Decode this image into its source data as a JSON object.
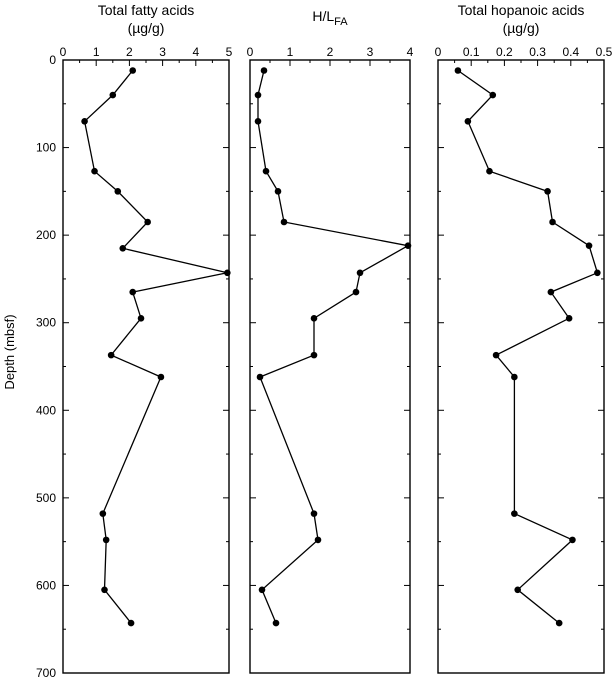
{
  "chart_data": [
    {
      "type": "line",
      "title_line1": "Total fatty acids",
      "title_line2": "(µg/g)",
      "xlim": [
        0,
        5
      ],
      "xticks": [
        "0",
        "1",
        "2",
        "3",
        "4",
        "5"
      ],
      "ylim": [
        0,
        700
      ],
      "x": [
        2.1,
        1.5,
        0.65,
        0.95,
        1.65,
        2.55,
        1.8,
        4.95,
        2.1,
        2.35,
        1.45,
        2.95,
        1.2,
        1.3,
        1.25,
        2.05
      ],
      "y": [
        12,
        40,
        70,
        127,
        150,
        185,
        215,
        243,
        265,
        295,
        337,
        362,
        518,
        548,
        605,
        643
      ]
    },
    {
      "type": "line",
      "title_main": "H/L",
      "title_sub": "FA",
      "xlim": [
        0,
        4
      ],
      "xticks": [
        "0",
        "1",
        "2",
        "3",
        "4"
      ],
      "ylim": [
        0,
        700
      ],
      "x": [
        0.35,
        0.2,
        0.2,
        0.4,
        0.7,
        0.85,
        3.95,
        2.75,
        2.65,
        1.6,
        1.6,
        0.25,
        1.6,
        1.7,
        0.3,
        0.65
      ],
      "y": [
        12,
        40,
        70,
        127,
        150,
        185,
        212,
        243,
        265,
        295,
        337,
        362,
        518,
        548,
        605,
        643
      ]
    },
    {
      "type": "line",
      "title_line1": "Total hopanoic acids",
      "title_line2": "(µg/g)",
      "xlim": [
        0,
        0.5
      ],
      "xticks": [
        "0",
        "0.1",
        "0.2",
        "0.3",
        "0.4",
        "0.5"
      ],
      "ylim": [
        0,
        700
      ],
      "x": [
        0.06,
        0.165,
        0.09,
        0.155,
        0.33,
        0.345,
        0.455,
        0.48,
        0.34,
        0.395,
        0.175,
        0.23,
        0.23,
        0.405,
        0.24,
        0.365
      ],
      "y": [
        12,
        40,
        70,
        127,
        150,
        185,
        212,
        243,
        265,
        295,
        337,
        362,
        518,
        548,
        605,
        643
      ]
    }
  ],
  "y_axis": {
    "label": "Depth (mbsf)",
    "ticks": [
      "0",
      "100",
      "200",
      "300",
      "400",
      "500",
      "600",
      "700"
    ]
  }
}
